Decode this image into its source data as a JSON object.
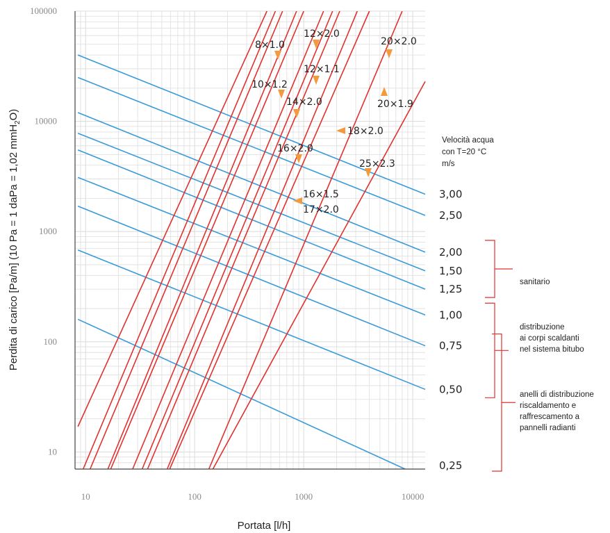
{
  "chart_data": {
    "type": "line",
    "xlabel": "Portata [l/h]",
    "ylabel": "Perdita di carico [Pa/m] (10 Pa = 1 daPa = 1,02 mmH",
    "ylabel_sub": "2",
    "ylabel_end": "O)",
    "x_scale": "log",
    "y_scale": "log",
    "xlim": [
      8,
      13000
    ],
    "ylim": [
      7,
      100000
    ],
    "x_ticks": [
      10,
      100,
      1000,
      10000
    ],
    "x_tick_labels": [
      "10",
      "100",
      "1000",
      "10000"
    ],
    "y_ticks": [
      10,
      100,
      1000,
      10000,
      100000
    ],
    "y_tick_labels": [
      "10",
      "100",
      "1000",
      "10000",
      "100000"
    ],
    "grid": true,
    "velocity_legend_title": [
      "Velocità acqua",
      "con T=20 °C",
      "m/s"
    ],
    "velocity_series": [
      {
        "name": "3,00",
        "points": [
          [
            8.5,
            40000
          ],
          [
            13000,
            2180
          ]
        ]
      },
      {
        "name": "2,50",
        "points": [
          [
            8.5,
            25000
          ],
          [
            13000,
            1400
          ]
        ]
      },
      {
        "name": "2,00",
        "points": [
          [
            8.5,
            12000
          ],
          [
            13000,
            650
          ]
        ]
      },
      {
        "name": "1,50",
        "points": [
          [
            8.5,
            7800
          ],
          [
            13000,
            440
          ]
        ]
      },
      {
        "name": "1,25",
        "points": [
          [
            8.5,
            5500
          ],
          [
            13000,
            300
          ]
        ]
      },
      {
        "name": "1,00",
        "points": [
          [
            8.5,
            3100
          ],
          [
            13000,
            175
          ]
        ]
      },
      {
        "name": "0,75",
        "points": [
          [
            8.5,
            1700
          ],
          [
            13000,
            92
          ]
        ]
      },
      {
        "name": "0,50",
        "points": [
          [
            8.5,
            680
          ],
          [
            13000,
            37
          ]
        ]
      },
      {
        "name": "0,25",
        "points": [
          [
            8.5,
            160
          ],
          [
            8500,
            7
          ]
        ]
      }
    ],
    "pipe_series": [
      {
        "name": "8×1.0",
        "points": [
          [
            8.5,
            17
          ],
          [
            460,
            100000
          ]
        ]
      },
      {
        "name": "10×1.2",
        "points": [
          [
            9.5,
            7
          ],
          [
            550,
            100000
          ]
        ]
      },
      {
        "name": "12×1.1",
        "points": [
          [
            11,
            7
          ],
          [
            640,
            100000
          ]
        ]
      },
      {
        "name": "12×2.0",
        "points": [
          [
            16,
            7
          ],
          [
            860,
            100000
          ]
        ]
      },
      {
        "name": "14×2.0",
        "points": [
          [
            17,
            7
          ],
          [
            1000,
            100000
          ]
        ]
      },
      {
        "name": "16×1.5",
        "points": [
          [
            27,
            7
          ],
          [
            1520,
            100000
          ]
        ]
      },
      {
        "name": "16×2.0",
        "points": [
          [
            33,
            7
          ],
          [
            1840,
            100000
          ]
        ]
      },
      {
        "name": "17×2.0",
        "points": [
          [
            37,
            7
          ],
          [
            2140,
            100000
          ]
        ]
      },
      {
        "name": "18×2.0",
        "points": [
          [
            56,
            7
          ],
          [
            3100,
            100000
          ]
        ]
      },
      {
        "name": "20×1.9",
        "points": [
          [
            59,
            7
          ],
          [
            4000,
            100000
          ]
        ]
      },
      {
        "name": "20×2.0",
        "points": [
          [
            135,
            7
          ],
          [
            8000,
            100000
          ]
        ]
      },
      {
        "name": "25×2.3",
        "points": [
          [
            147,
            7
          ],
          [
            13000,
            23000
          ]
        ]
      }
    ],
    "velocity_groups": [
      {
        "label": [
          "sanitario"
        ],
        "from": "2,00",
        "to": "1,25"
      },
      {
        "label": [
          "distribuzione",
          "ai corpi scaldanti",
          "nel sistema bitubo"
        ],
        "from": "1,00",
        "to": "0,50"
      },
      {
        "label": [
          "anelli di distribuzione",
          "riscaldamento e",
          "raffrescamento a",
          "pannelli radianti"
        ],
        "from": "0,75",
        "to": "0,25"
      }
    ],
    "colors": {
      "velocity": "#3a9ad9",
      "pipe": "#e0312e",
      "marker": "#f39a3c",
      "grid": "#dedede",
      "axis": "#444444"
    }
  }
}
